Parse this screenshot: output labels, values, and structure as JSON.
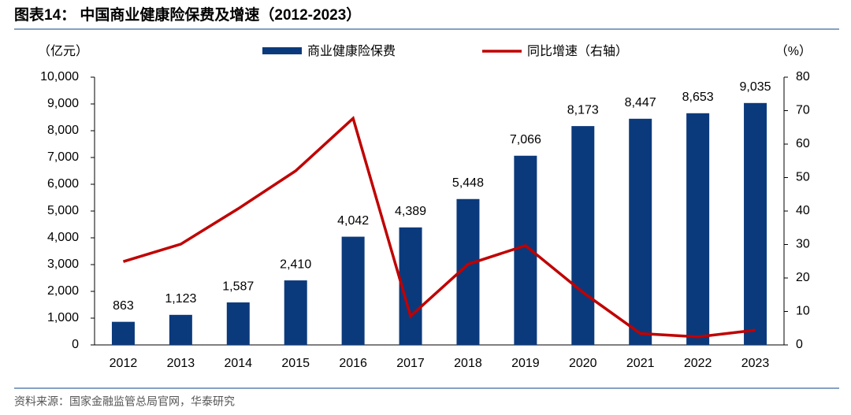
{
  "chart_data": {
    "type": "bar-line",
    "title": "图表14： 中国商业健康险保费及增速（2012-2023）",
    "y_label": "（亿元）",
    "y2_label": "（%）",
    "source": "资料来源：国家金融监管总局官网，华泰研究",
    "categories": [
      "2012",
      "2013",
      "2014",
      "2015",
      "2016",
      "2017",
      "2018",
      "2019",
      "2020",
      "2021",
      "2022",
      "2023"
    ],
    "series": [
      {
        "name": "商业健康险保费",
        "type": "bar",
        "color": "#0b3a7c",
        "values": [
          863,
          1123,
          1587,
          2410,
          4042,
          4389,
          5448,
          7066,
          8173,
          8447,
          8653,
          9035
        ],
        "value_labels": [
          "863",
          "1,123",
          "1,587",
          "2,410",
          "4,042",
          "4,389",
          "5,448",
          "7,066",
          "8,173",
          "8,447",
          "8,653",
          "9,035"
        ]
      },
      {
        "name": "同比增速（右轴）",
        "type": "line",
        "color": "#c00000",
        "axis": "y2",
        "values": [
          24.9,
          30.1,
          40.7,
          52.0,
          67.7,
          8.6,
          24.1,
          29.7,
          15.7,
          3.4,
          2.4,
          4.4
        ]
      }
    ],
    "ylim": [
      0,
      10000
    ],
    "yticks": [
      0,
      {
        "value": 1000,
        "label": "1,000"
      },
      {
        "value": 2000,
        "label": "2,000"
      },
      {
        "value": 3000,
        "label": "3,000"
      },
      {
        "value": 4000,
        "label": "4,000"
      },
      {
        "value": 5000,
        "label": "5,000"
      },
      {
        "value": 6000,
        "label": "6,000"
      },
      {
        "value": 7000,
        "label": "7,000"
      },
      {
        "value": 8000,
        "label": "8,000"
      },
      {
        "value": 9000,
        "label": "9,000"
      },
      {
        "value": 10000,
        "label": "10,000"
      }
    ],
    "y2lim": [
      0,
      80
    ],
    "y2ticks": [
      0,
      10,
      20,
      30,
      40,
      50,
      60,
      70,
      80
    ]
  }
}
